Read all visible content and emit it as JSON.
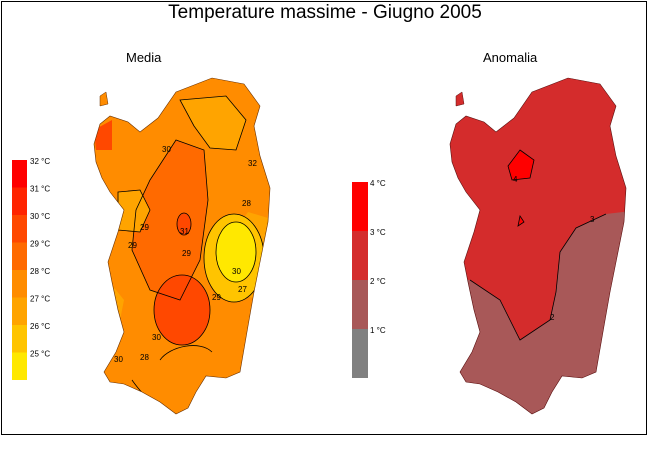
{
  "title": "Temperature massime - Giugno 2005",
  "maps": [
    {
      "title": "Media",
      "legend": [
        {
          "label": "32 °C",
          "color": "#ff0000"
        },
        {
          "label": "31 °C",
          "color": "#ff2400"
        },
        {
          "label": "30 °C",
          "color": "#ff4800"
        },
        {
          "label": "29 °C",
          "color": "#ff6a00"
        },
        {
          "label": "28 °C",
          "color": "#ff8c00"
        },
        {
          "label": "27 °C",
          "color": "#ffa400"
        },
        {
          "label": "26 °C",
          "color": "#ffc400"
        },
        {
          "label": "25 °C",
          "color": "#ffe800"
        }
      ],
      "contour_labels": [
        "30",
        "32",
        "28",
        "29",
        "29",
        "31",
        "29",
        "30",
        "29",
        "27",
        "28",
        "30",
        "30",
        "31",
        "30",
        "32"
      ]
    },
    {
      "title": "Anomalia",
      "legend": [
        {
          "label": "4 °C",
          "color": "#ff0000"
        },
        {
          "label": "3 °C",
          "color": "#d42c2c"
        },
        {
          "label": "2 °C",
          "color": "#a85858"
        },
        {
          "label": "1 °C",
          "color": "#808080"
        }
      ],
      "contour_labels": [
        "4",
        "3",
        "2",
        "2"
      ]
    }
  ]
}
